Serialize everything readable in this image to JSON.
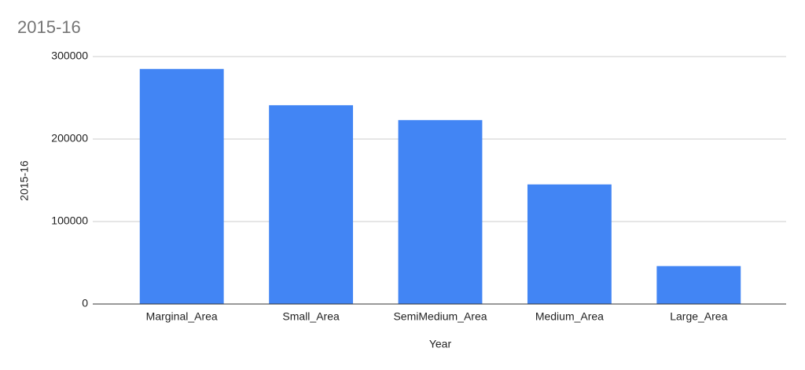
{
  "chart_data": {
    "type": "bar",
    "title": "2015-16",
    "x_label": "Year",
    "y_label": "2015-16",
    "categories": [
      "Marginal_Area",
      "Small_Area",
      "SemiMedium_Area",
      "Medium_Area",
      "Large_Area"
    ],
    "values": [
      285000,
      241000,
      223000,
      145000,
      46000
    ],
    "color": "#4285f4",
    "ylim": [
      0,
      300000
    ],
    "yticks": [
      0,
      100000,
      200000,
      300000
    ],
    "grid": true
  }
}
